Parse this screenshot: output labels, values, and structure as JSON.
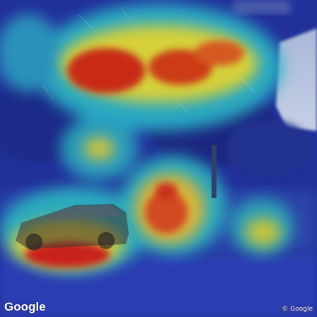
{
  "watermark": {
    "logo_text": "Google",
    "copyright_text": "© Google"
  },
  "colors": {
    "heatmap_low": "#1e2fa8",
    "heatmap_mid": "#2ab6c8",
    "heatmap_warm": "#e0d23a",
    "heatmap_high": "#c01818",
    "sky": "#b8c6e0"
  }
}
